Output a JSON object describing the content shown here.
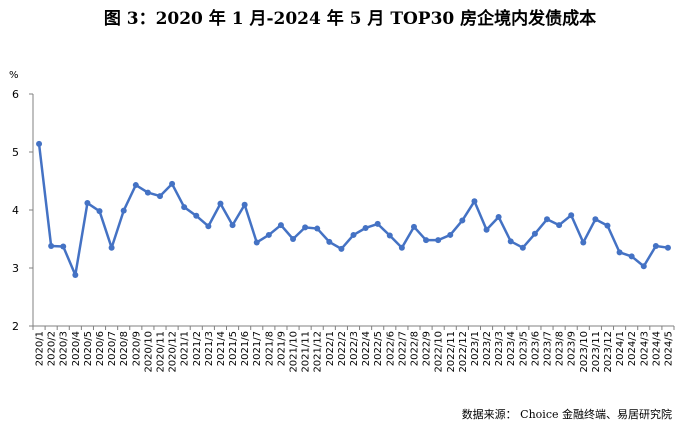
{
  "header": {
    "title": "图 3：2020 年 1 月-2024 年 5 月 TOP30 房企境内发债成本"
  },
  "footer": {
    "source": "数据来源： Choice 金融终端、易居研究院"
  },
  "chart_data": {
    "type": "line",
    "title": "图 3：2020 年 1 月-2024 年 5 月 TOP30 房企境内发债成本",
    "ylabel": "%",
    "xlabel": "",
    "ylim": [
      2,
      6
    ],
    "yticks": [
      2,
      3,
      4,
      5,
      6
    ],
    "grid": false,
    "legend": "none",
    "color": "#4472C4",
    "categories": [
      "2020/1",
      "2020/2",
      "2020/3",
      "2020/4",
      "2020/5",
      "2020/6",
      "2020/7",
      "2020/8",
      "2020/9",
      "2020/10",
      "2020/11",
      "2020/12",
      "2021/1",
      "2021/2",
      "2021/3",
      "2021/4",
      "2021/5",
      "2021/6",
      "2021/7",
      "2021/8",
      "2021/9",
      "2021/10",
      "2021/11",
      "2021/12",
      "2022/1",
      "2022/2",
      "2022/3",
      "2022/4",
      "2022/5",
      "2022/6",
      "2022/7",
      "2022/8",
      "2022/9",
      "2022/10",
      "2022/11",
      "2022/12",
      "2023/1",
      "2023/2",
      "2023/3",
      "2023/4",
      "2023/5",
      "2023/6",
      "2023/7",
      "2023/8",
      "2023/9",
      "2023/10",
      "2023/11",
      "2023/12",
      "2024/1",
      "2024/2",
      "2024/3",
      "2024/4",
      "2024/5"
    ],
    "values": [
      5.14,
      3.38,
      3.37,
      2.88,
      4.12,
      3.98,
      3.35,
      3.99,
      4.43,
      4.3,
      4.24,
      4.45,
      4.05,
      3.9,
      3.72,
      4.11,
      3.74,
      4.09,
      3.44,
      3.57,
      3.74,
      3.5,
      3.7,
      3.68,
      3.45,
      3.33,
      3.57,
      3.69,
      3.76,
      3.56,
      3.35,
      3.71,
      3.48,
      3.48,
      3.57,
      3.82,
      4.15,
      3.66,
      3.88,
      3.46,
      3.35,
      3.59,
      3.84,
      3.74,
      3.91,
      3.44,
      3.84,
      3.73,
      3.27,
      3.2,
      3.03,
      3.38,
      3.35
    ]
  }
}
